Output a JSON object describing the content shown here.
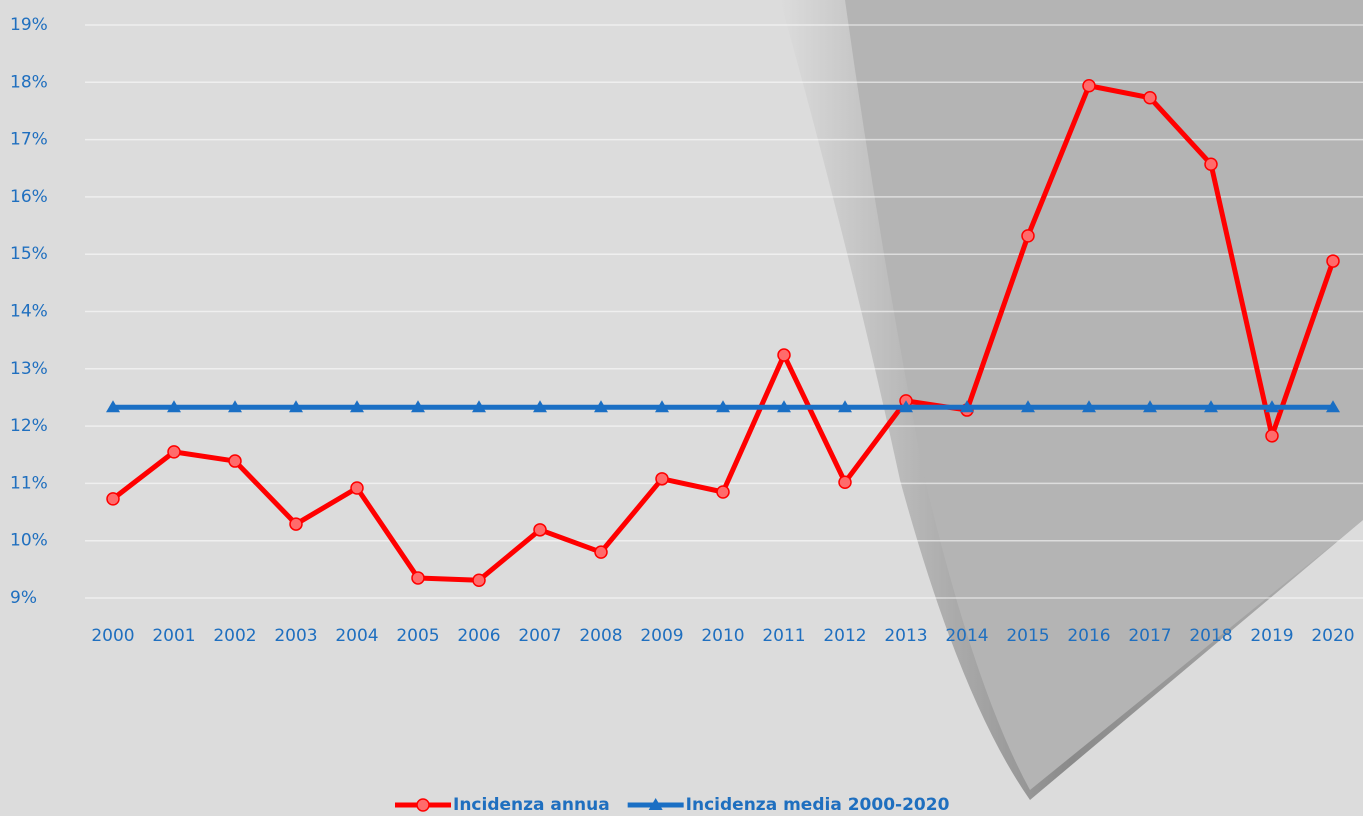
{
  "chart_data": {
    "type": "line",
    "categories": [
      "2000",
      "2001",
      "2002",
      "2003",
      "2004",
      "2005",
      "2006",
      "2007",
      "2008",
      "2009",
      "2010",
      "2011",
      "2012",
      "2013",
      "2014",
      "2015",
      "2016",
      "2017",
      "2018",
      "2019",
      "2020"
    ],
    "series": [
      {
        "name": "Incidenza annua",
        "color": "#ff0000",
        "marker": "circle",
        "values": [
          10.73,
          11.55,
          11.39,
          10.29,
          10.92,
          9.35,
          9.31,
          10.19,
          9.8,
          11.08,
          10.85,
          13.24,
          11.02,
          12.44,
          12.28,
          15.32,
          17.94,
          17.73,
          16.57,
          11.83,
          14.88
        ]
      },
      {
        "name": "Incidenza media 2000-2020",
        "color": "#1a6fc4",
        "marker": "triangle",
        "values": [
          12.33,
          12.33,
          12.33,
          12.33,
          12.33,
          12.33,
          12.33,
          12.33,
          12.33,
          12.33,
          12.33,
          12.33,
          12.33,
          12.33,
          12.33,
          12.33,
          12.33,
          12.33,
          12.33,
          12.33,
          12.33
        ]
      }
    ],
    "ylim": [
      9,
      19
    ],
    "yticks": [
      {
        "value": 9,
        "label": "9%"
      },
      {
        "value": 10,
        "label": "10%"
      },
      {
        "value": 11,
        "label": "11%"
      },
      {
        "value": 12,
        "label": "12%"
      },
      {
        "value": 13,
        "label": "13%"
      },
      {
        "value": 14,
        "label": "14%"
      },
      {
        "value": 15,
        "label": "15%"
      },
      {
        "value": 16,
        "label": "16%"
      },
      {
        "value": 17,
        "label": "17%"
      },
      {
        "value": 18,
        "label": "18%"
      },
      {
        "value": 19,
        "label": "19%"
      }
    ],
    "grid": true,
    "legend": "bottom"
  }
}
